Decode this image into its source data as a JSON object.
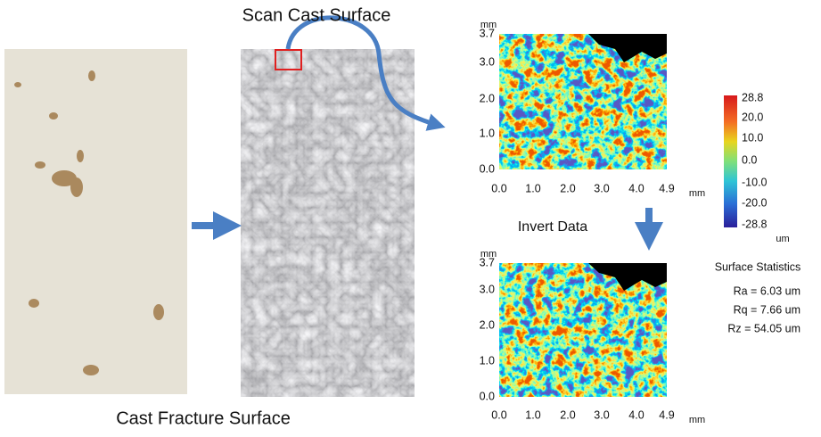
{
  "labels": {
    "scan": "Scan Cast Surface",
    "fracture": "Cast Fracture Surface",
    "invert": "Invert Data"
  },
  "maps": [
    {
      "y_unit": "mm",
      "x_unit": "mm",
      "yticks": [
        "3.7",
        "3.0",
        "2.0",
        "1.0",
        "0.0"
      ],
      "xticks": [
        "0.0",
        "1.0",
        "2.0",
        "3.0",
        "4.0",
        "4.9"
      ]
    },
    {
      "y_unit": "mm",
      "x_unit": "mm",
      "yticks": [
        "3.7",
        "3.0",
        "2.0",
        "1.0",
        "0.0"
      ],
      "xticks": [
        "0.0",
        "1.0",
        "2.0",
        "3.0",
        "4.0",
        "4.9"
      ]
    }
  ],
  "colorbar": {
    "ticks": [
      "28.8",
      "20.0",
      "10.0",
      "0.0",
      "-10.0",
      "-20.0",
      "-28.8"
    ],
    "unit": "um"
  },
  "statistics": {
    "title": "Surface Statistics",
    "lines": [
      "Ra = 6.03 um",
      "Rq = 7.66 um",
      "Rz = 54.05 um"
    ]
  }
}
